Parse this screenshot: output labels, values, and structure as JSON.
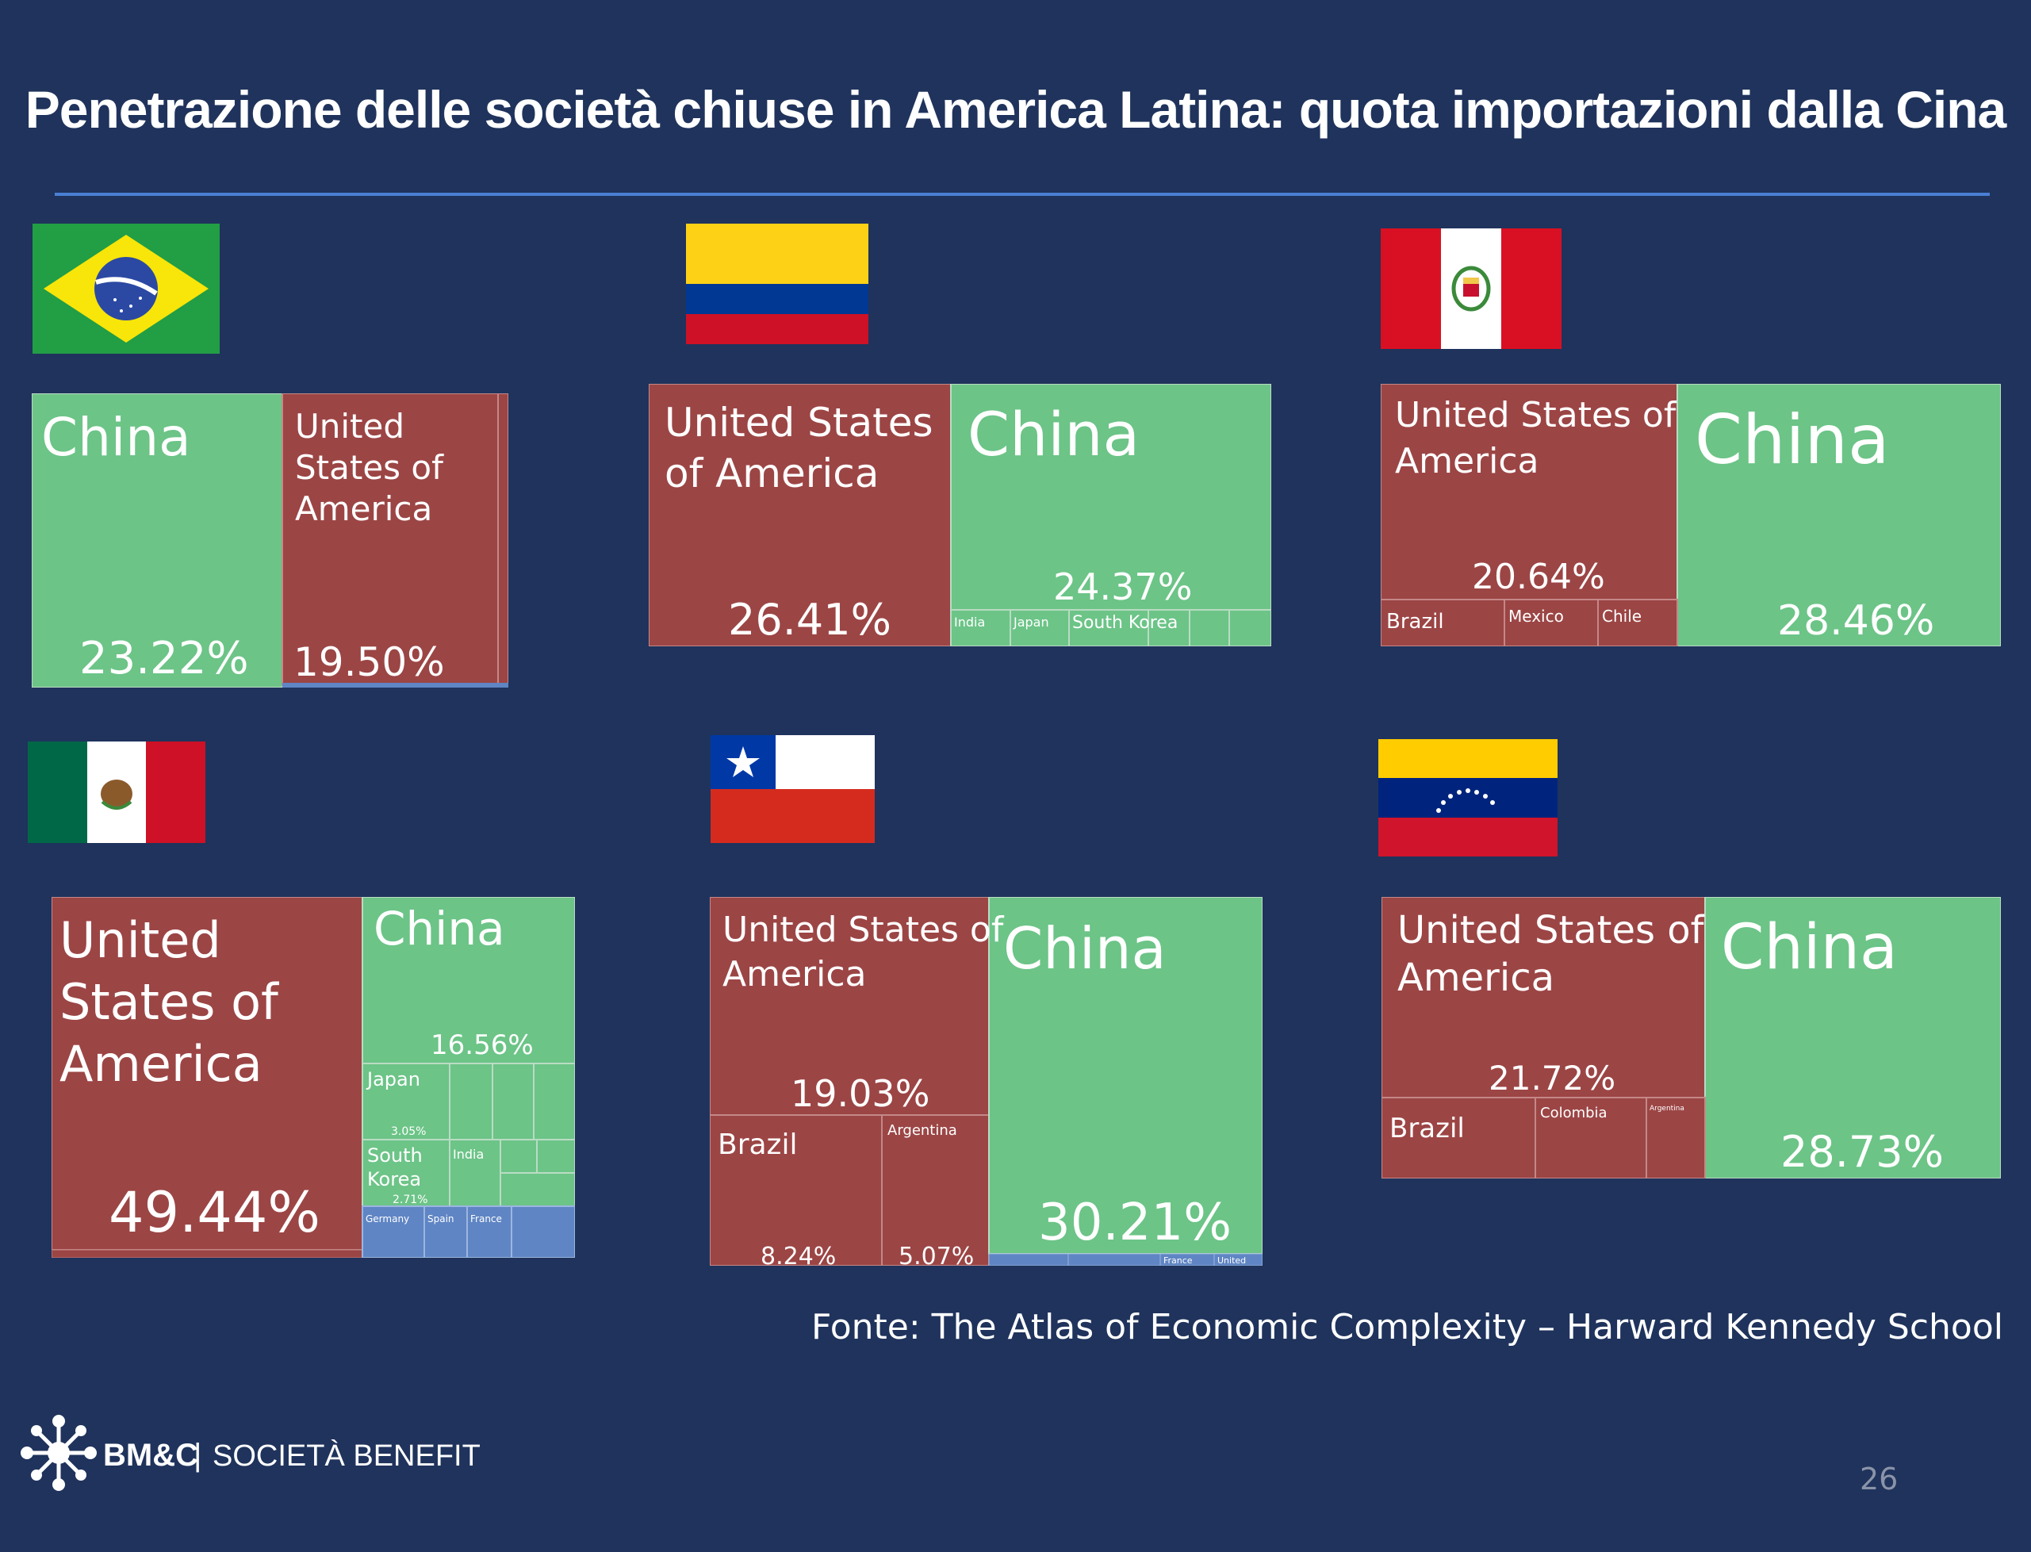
{
  "title": "Penetrazione delle società chiuse in America Latina: quota importazioni dalla Cina",
  "source": "Fonte: The Atlas of Economic Complexity – Harward Kennedy School",
  "page_number": "26",
  "logo": {
    "brand": "BM&C",
    "divider": "|",
    "text": "SOCIETÀ BENEFIT"
  },
  "colors": {
    "background": "#1f335c",
    "china": "#6cc487",
    "americas": "#9c4545",
    "europe": "#5f85c4",
    "rule": "#4a7fd4"
  },
  "flags": [
    {
      "country": "Brazil",
      "icon": "brazil-flag-icon"
    },
    {
      "country": "Colombia",
      "icon": "colombia-flag-icon"
    },
    {
      "country": "Peru",
      "icon": "peru-flag-icon"
    },
    {
      "country": "Mexico",
      "icon": "mexico-flag-icon"
    },
    {
      "country": "Chile",
      "icon": "chile-flag-icon"
    },
    {
      "country": "Venezuela",
      "icon": "venezuela-flag-icon"
    }
  ],
  "chart_data": [
    {
      "type": "treemap",
      "importer": "Brazil",
      "cells": [
        {
          "label": "China",
          "value": 23.22,
          "display": "23.22%",
          "region": "china"
        },
        {
          "label": "United States of America",
          "value": 19.5,
          "display": "19.50%",
          "region": "americas"
        }
      ]
    },
    {
      "type": "treemap",
      "importer": "Colombia",
      "cells": [
        {
          "label": "United States of America",
          "value": 26.41,
          "display": "26.41%",
          "region": "americas"
        },
        {
          "label": "China",
          "value": 24.37,
          "display": "24.37%",
          "region": "china"
        },
        {
          "label": "India",
          "region": "china"
        },
        {
          "label": "Japan",
          "region": "china"
        },
        {
          "label": "South Korea",
          "region": "china"
        }
      ]
    },
    {
      "type": "treemap",
      "importer": "Peru",
      "cells": [
        {
          "label": "United States of America",
          "value": 20.64,
          "display": "20.64%",
          "region": "americas"
        },
        {
          "label": "China",
          "value": 28.46,
          "display": "28.46%",
          "region": "china"
        },
        {
          "label": "Brazil",
          "region": "americas"
        },
        {
          "label": "Mexico",
          "region": "americas"
        },
        {
          "label": "Chile",
          "region": "americas"
        }
      ]
    },
    {
      "type": "treemap",
      "importer": "Mexico",
      "cells": [
        {
          "label": "United States of America",
          "value": 49.44,
          "display": "49.44%",
          "region": "americas"
        },
        {
          "label": "China",
          "value": 16.56,
          "display": "16.56%",
          "region": "china"
        },
        {
          "label": "Japan",
          "value": 3.05,
          "display": "3.05%",
          "region": "china"
        },
        {
          "label": "South Korea",
          "value": 2.71,
          "display": "2.71%",
          "region": "china"
        },
        {
          "label": "India",
          "region": "china"
        },
        {
          "label": "Germany",
          "region": "europe"
        },
        {
          "label": "Spain",
          "region": "europe"
        },
        {
          "label": "France",
          "region": "europe"
        }
      ]
    },
    {
      "type": "treemap",
      "importer": "Chile",
      "cells": [
        {
          "label": "United States of America",
          "value": 19.03,
          "display": "19.03%",
          "region": "americas"
        },
        {
          "label": "China",
          "value": 30.21,
          "display": "30.21%",
          "region": "china"
        },
        {
          "label": "Brazil",
          "value": 8.24,
          "display": "8.24%",
          "region": "americas"
        },
        {
          "label": "Argentina",
          "value": 5.07,
          "display": "5.07%",
          "region": "americas"
        },
        {
          "label": "France",
          "region": "europe"
        },
        {
          "label": "United",
          "region": "europe"
        }
      ]
    },
    {
      "type": "treemap",
      "importer": "Venezuela",
      "cells": [
        {
          "label": "United States of America",
          "value": 21.72,
          "display": "21.72%",
          "region": "americas"
        },
        {
          "label": "China",
          "value": 28.73,
          "display": "28.73%",
          "region": "china"
        },
        {
          "label": "Brazil",
          "region": "americas"
        },
        {
          "label": "Colombia",
          "region": "americas"
        },
        {
          "label": "Argentina",
          "region": "americas"
        }
      ]
    }
  ]
}
